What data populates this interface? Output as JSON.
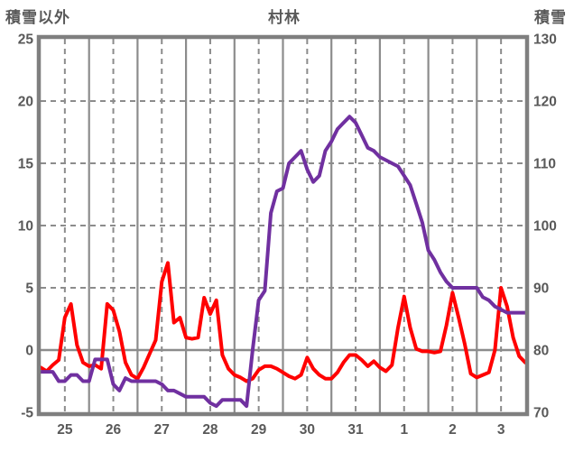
{
  "chart_data": {
    "type": "line",
    "title": "村林",
    "left_axis": {
      "label": "積雪以外",
      "min": -5,
      "max": 25,
      "ticks": [
        25,
        20,
        15,
        10,
        5,
        0,
        -5
      ]
    },
    "right_axis": {
      "label": "積雪",
      "min": 70,
      "max": 130,
      "ticks": [
        130,
        120,
        110,
        100,
        90,
        80,
        70
      ]
    },
    "x_axis": {
      "tick_labels": [
        "25",
        "26",
        "27",
        "28",
        "29",
        "30",
        "31",
        "1",
        "2",
        "3"
      ],
      "days": 10,
      "points_per_day": 8
    },
    "grid": {
      "line_color": "#8c8c8c",
      "border_color": "#7f7f7f",
      "text_color": "#595959",
      "background": "#ffffff"
    },
    "legend": "none",
    "series": [
      {
        "name": "積雪以外",
        "axis": "left",
        "color": "#ff0000",
        "values": [
          -1.4,
          -1.7,
          -1.2,
          -0.8,
          2.6,
          3.7,
          0.4,
          -1.0,
          -1.3,
          -1.2,
          -1.5,
          3.7,
          3.2,
          1.5,
          -1.0,
          -2.0,
          -2.3,
          -1.4,
          -0.3,
          0.8,
          5.5,
          7.0,
          2.2,
          2.6,
          1.0,
          0.9,
          1.0,
          4.2,
          2.9,
          4.0,
          -0.4,
          -1.5,
          -2.0,
          -2.2,
          -2.5,
          -2.3,
          -1.6,
          -1.3,
          -1.3,
          -1.5,
          -1.8,
          -2.1,
          -2.3,
          -2.0,
          -0.6,
          -1.5,
          -2.0,
          -2.3,
          -2.3,
          -1.8,
          -1.0,
          -0.4,
          -0.4,
          -0.8,
          -1.3,
          -0.9,
          -1.4,
          -1.7,
          -1.2,
          1.8,
          4.3,
          1.8,
          0.1,
          -0.1,
          -0.1,
          -0.2,
          -0.1,
          2.0,
          4.6,
          2.6,
          0.5,
          -1.9,
          -2.2,
          -2.0,
          -1.8,
          0.0,
          5.0,
          3.5,
          1.0,
          -0.5,
          -1.0
        ]
      },
      {
        "name": "積雪",
        "axis": "right",
        "color": "#7030a0",
        "values": [
          76.5,
          76.5,
          76.5,
          75,
          75,
          76,
          76,
          75,
          75,
          78.5,
          78.5,
          78.5,
          74.5,
          73.5,
          75.5,
          75,
          75,
          75,
          75,
          75,
          74.5,
          73.5,
          73.5,
          73,
          72.5,
          72.5,
          72.5,
          72.5,
          71.5,
          71,
          72,
          72,
          72,
          72,
          71,
          80,
          88,
          89.5,
          102,
          105.5,
          106,
          110,
          111,
          112,
          109,
          107,
          108,
          112,
          113.5,
          115.5,
          116.5,
          117.5,
          116.5,
          114.5,
          112.5,
          112,
          111,
          110.5,
          110,
          109.5,
          108,
          106.5,
          103.5,
          100.5,
          96,
          94.5,
          92.5,
          91,
          90,
          90,
          90,
          90,
          90,
          88.5,
          88,
          87,
          86.5,
          86,
          86,
          86,
          86
        ]
      }
    ]
  }
}
